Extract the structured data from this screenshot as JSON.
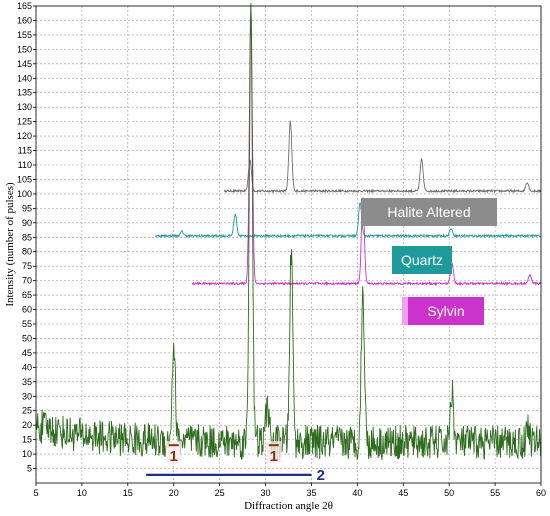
{
  "chart_data": {
    "type": "line",
    "xlabel": "Diffraction angle 2θ",
    "ylabel": "Intensity (number of pulses)",
    "xlim": [
      5,
      60
    ],
    "ylim": [
      0,
      165
    ],
    "xticks": [
      "5",
      "10",
      "15",
      "20",
      "25",
      "30",
      "35",
      "40",
      "45",
      "50",
      "55",
      "60"
    ],
    "yticks": [
      "5",
      "10",
      "15",
      "20",
      "25",
      "30",
      "35",
      "40",
      "45",
      "50",
      "55",
      "60",
      "65",
      "70",
      "75",
      "80",
      "85",
      "90",
      "95",
      "100",
      "105",
      "110",
      "115",
      "120",
      "125",
      "130",
      "135",
      "140",
      "145",
      "150",
      "155",
      "160",
      "165"
    ],
    "grid": true,
    "series": [
      {
        "name": "",
        "color": "#2e6b1f",
        "baseline": 14,
        "x_range": [
          5,
          60
        ],
        "peaks": [
          [
            20.0,
            48
          ],
          [
            28.4,
            165
          ],
          [
            30.2,
            28
          ],
          [
            32.8,
            80
          ],
          [
            40.6,
            66
          ],
          [
            50.3,
            32
          ],
          [
            58.6,
            20
          ]
        ]
      },
      {
        "name": "Sylvin",
        "color": "#cc33cc",
        "baseline": 69,
        "x_range": [
          22,
          60
        ],
        "peaks": [
          [
            28.4,
            165
          ],
          [
            40.6,
            99
          ],
          [
            50.3,
            76
          ],
          [
            58.8,
            72
          ]
        ]
      },
      {
        "name": "Quartz",
        "color": "#1e9a9a",
        "baseline": 85.5,
        "x_range": [
          18,
          60
        ],
        "peaks": [
          [
            20.9,
            87
          ],
          [
            26.7,
            93
          ],
          [
            40.3,
            97
          ],
          [
            50.2,
            88
          ]
        ]
      },
      {
        "name": "Halite Altered",
        "color": "#6f6f6f",
        "baseline": 101,
        "x_range": [
          25.5,
          60
        ],
        "peaks": [
          [
            28.3,
            112
          ],
          [
            32.7,
            125
          ],
          [
            47.0,
            112
          ],
          [
            58.5,
            104
          ]
        ]
      }
    ],
    "annotations": [
      {
        "text": "1",
        "x": 20.0,
        "y": 11,
        "color": "#7a3b12"
      },
      {
        "text": "1",
        "x": 30.9,
        "y": 11,
        "color": "#7a3b12"
      },
      {
        "text": "2",
        "x": 36.0,
        "y": 3.5,
        "color": "#1f2d86",
        "line_from_x": 17,
        "line_to_x": 35
      }
    ],
    "legend_labels": [
      {
        "text": "Halite Altered",
        "bg": "#8c8c8c",
        "series": "Halite Altered"
      },
      {
        "text": "Quartz",
        "bg": "#1e9a9a",
        "series": "Quartz"
      },
      {
        "text": "Sylvin",
        "bg": "#cc33cc",
        "series": "Sylvin"
      }
    ]
  }
}
